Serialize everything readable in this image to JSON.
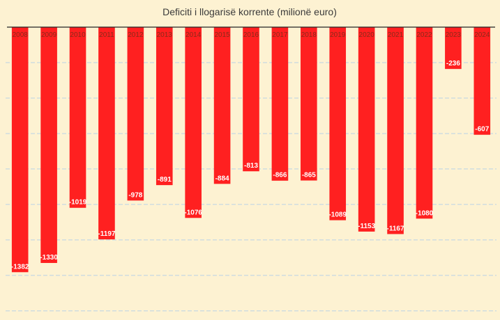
{
  "chart_data": {
    "type": "bar",
    "title": "Deficiti i llogarisë korrente (milionë euro)",
    "categories": [
      "2008",
      "2009",
      "2010",
      "2011",
      "2012",
      "2013",
      "2014",
      "2015",
      "2016",
      "2017",
      "2018",
      "2019",
      "2020",
      "2021",
      "2022",
      "2023",
      "2024"
    ],
    "values": [
      -1382,
      -1330,
      -1019,
      -1197,
      -978,
      -891,
      -1076,
      -884,
      -813,
      -866,
      -865,
      -1089,
      -1153,
      -1167,
      -1080,
      -236,
      -607
    ],
    "data_labels": [
      "-1382",
      "-1330",
      "-1019",
      "-1197",
      "-978",
      "-891",
      "-1076",
      "-884",
      "-813",
      "-866",
      "-865",
      "-1089",
      "-1153",
      "-1167",
      "-1080",
      "-236",
      "-607"
    ],
    "ylim": [
      -1600,
      0
    ],
    "grid": true,
    "grid_values": [
      -200,
      -400,
      -600,
      -800,
      -1000,
      -1200,
      -1400,
      -1600
    ],
    "bar_color": "#ff2020",
    "grid_color": "#b9d3e6",
    "axis_color": "#222222"
  }
}
